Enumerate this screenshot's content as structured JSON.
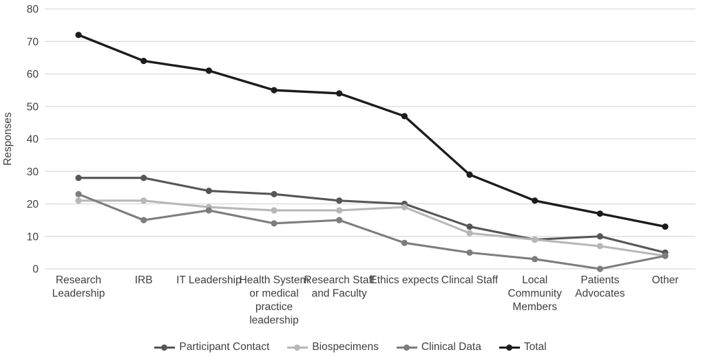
{
  "chart_data": {
    "type": "line",
    "title": "",
    "xlabel": "",
    "ylabel": "Responses",
    "ylim": [
      0,
      80
    ],
    "yticks": [
      0,
      10,
      20,
      30,
      40,
      50,
      60,
      70,
      80
    ],
    "grid": "horizontal",
    "legend_position": "bottom",
    "categories": [
      "Research Leadership",
      "IRB",
      "IT Leadership",
      "Health System or medical practice leadership",
      "Research Staff and Faculty",
      "Ethics expects",
      "Clincal Staff",
      "Local Community Members",
      "Patients Advocates",
      "Other"
    ],
    "category_label_lines": [
      [
        "Research",
        "Leadership"
      ],
      [
        "IRB"
      ],
      [
        "IT Leadership"
      ],
      [
        "Health System",
        "or medical",
        "practice",
        "leadership"
      ],
      [
        "Research Staff",
        "and Faculty"
      ],
      [
        "Ethics expects"
      ],
      [
        "Clincal Staff"
      ],
      [
        "Local",
        "Community",
        "Members"
      ],
      [
        "Patients",
        "Advocates"
      ],
      [
        "Other"
      ]
    ],
    "series": [
      {
        "name": "Participant Contact",
        "color": "#565656",
        "values": [
          28,
          28,
          24,
          23,
          21,
          20,
          13,
          9,
          10,
          5
        ]
      },
      {
        "name": "Biospecimens",
        "color": "#b7b7b7",
        "values": [
          21,
          21,
          19,
          18,
          18,
          19,
          11,
          9,
          7,
          4
        ]
      },
      {
        "name": "Clinical Data",
        "color": "#7d7d7d",
        "values": [
          23,
          15,
          18,
          14,
          15,
          8,
          5,
          3,
          0,
          4
        ]
      },
      {
        "name": "Total",
        "color": "#1c1c1c",
        "values": [
          72,
          64,
          61,
          55,
          54,
          47,
          29,
          21,
          17,
          13
        ]
      }
    ]
  },
  "colors": {
    "background": "#ffffff",
    "gridline": "#d9d9d9",
    "axis_text": "#3f3f3f"
  }
}
